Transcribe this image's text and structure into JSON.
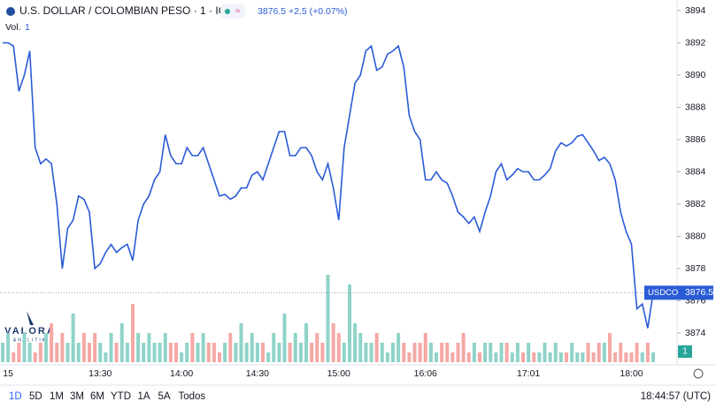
{
  "chart_data": {
    "type": "line",
    "title": "U.S. DOLLAR / COLOMBIAN PESO · 1 · ICE",
    "last_price": 3876.5,
    "change_label": "+2.5 (+0.07%)",
    "volume_label": "Vol.",
    "symbol": "USDCOP",
    "logo": "VALORA",
    "logo_sub": "ANALITIK",
    "ranges": [
      "1D",
      "5D",
      "1M",
      "3M",
      "6M",
      "YTD",
      "1A",
      "5A",
      "Todos"
    ],
    "clock": "18:44:57 (UTC)",
    "categories": [
      null,
      "15",
      null,
      null,
      null,
      null,
      null,
      null,
      null,
      null,
      null,
      null,
      null,
      null,
      null,
      null,
      null,
      null,
      "13:30",
      null,
      null,
      null,
      null,
      null,
      null,
      null,
      null,
      null,
      null,
      null,
      null,
      null,
      null,
      "14:00",
      null,
      null,
      null,
      null,
      null,
      null,
      null,
      null,
      null,
      null,
      null,
      null,
      null,
      "14:30",
      null,
      null,
      null,
      null,
      null,
      null,
      null,
      null,
      null,
      null,
      null,
      null,
      null,
      null,
      "15:00",
      null,
      null,
      null,
      null,
      null,
      null,
      null,
      null,
      null,
      null,
      null,
      null,
      null,
      null,
      null,
      "16:06",
      null,
      null,
      null,
      null,
      null,
      null,
      null,
      null,
      null,
      null,
      null,
      null,
      null,
      null,
      null,
      null,
      null,
      null,
      "17:01",
      null,
      null,
      null,
      null,
      null,
      null,
      null,
      null,
      null,
      null,
      null,
      null,
      null,
      null,
      null,
      null,
      null,
      null,
      "18:00",
      null,
      null,
      null,
      null
    ],
    "series": [
      {
        "name": "USDCOP",
        "color": "#2a5bd7",
        "values": [
          3892,
          3892,
          3891.8,
          3889,
          3890,
          3891.5,
          3885.5,
          3884.5,
          3884.8,
          3884.5,
          3882,
          3878,
          3880.5,
          3881,
          3882.5,
          3882.3,
          3881.5,
          3878,
          3878.3,
          3879,
          3879.5,
          3879,
          3879.3,
          3879.5,
          3878.5,
          3881,
          3882,
          3882.5,
          3883.5,
          3884,
          3886.3,
          3885,
          3884.5,
          3884.5,
          3885.5,
          3885,
          3885,
          3885.5,
          3884.5,
          3883.5,
          3882.5,
          3882.6,
          3882.3,
          3882.5,
          3883,
          3883,
          3883.8,
          3884,
          3883.5,
          3884.5,
          3885.5,
          3886.5,
          3886.5,
          3885,
          3885,
          3885.5,
          3885.5,
          3885,
          3884,
          3883.5,
          3884.5,
          3883,
          3881,
          3885.5,
          3887.5,
          3889.5,
          3890,
          3891.5,
          3891.8,
          3890.3,
          3890.5,
          3891.3,
          3891.5,
          3891.8,
          3890.5,
          3887.5,
          3886.5,
          3886,
          3883.5,
          3883.5,
          3884,
          3883.5,
          3883.3,
          3882.5,
          3881.5,
          3881.2,
          3880.8,
          3881.2,
          3880.3,
          3881.5,
          3882.5,
          3884,
          3884.5,
          3883.5,
          3883.8,
          3884.2,
          3884,
          3884,
          3883.5,
          3883.5,
          3883.8,
          3884.2,
          3885.3,
          3885.8,
          3885.6,
          3885.8,
          3886.2,
          3886.3,
          3885.8,
          3885.3,
          3884.7,
          3884.9,
          3884.5,
          3883.5,
          3881.5,
          3880.3,
          3879.5,
          3875.5,
          3875.8,
          3874.3,
          3876.5
        ]
      }
    ],
    "volume": {
      "up_color": "#8fd3c9",
      "down_color": "#f5a8a5",
      "values": [
        2,
        3,
        1,
        2,
        3,
        2,
        1,
        2,
        3,
        4,
        2,
        3,
        2,
        5,
        2,
        3,
        2,
        3,
        2,
        1,
        3,
        2,
        4,
        2,
        6,
        3,
        2,
        3,
        2,
        2,
        3,
        2,
        2,
        1,
        2,
        3,
        2,
        3,
        2,
        2,
        1,
        2,
        3,
        2,
        4,
        2,
        3,
        2,
        2,
        1,
        3,
        2,
        5,
        2,
        3,
        2,
        4,
        2,
        3,
        2,
        9,
        4,
        3,
        2,
        8,
        4,
        3,
        2,
        2,
        3,
        2,
        1,
        2,
        3,
        2,
        1,
        2,
        2,
        3,
        2,
        1,
        2,
        2,
        1,
        2,
        3,
        1,
        2,
        1,
        2,
        2,
        1,
        2,
        2,
        1,
        2,
        1,
        2,
        1,
        1,
        2,
        1,
        2,
        1,
        1,
        2,
        1,
        1,
        2,
        1,
        2,
        2,
        3,
        1,
        2,
        1,
        1,
        2,
        1,
        2,
        1
      ]
    },
    "ylim": [
      3873,
      3895
    ],
    "yticks": [
      3874,
      3876,
      3878,
      3880,
      3882,
      3884,
      3886,
      3888,
      3890,
      3892,
      3894
    ],
    "grid": false
  }
}
